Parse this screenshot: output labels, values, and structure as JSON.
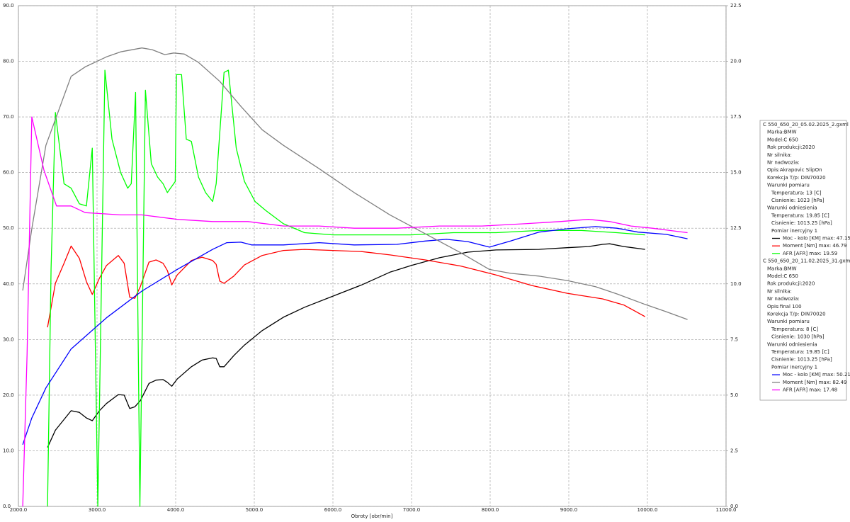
{
  "chart_data": {
    "type": "line",
    "x_label": "Obroty [obr/min]",
    "xlim": [
      2000,
      11000
    ],
    "xticks": [
      {
        "value": 2000,
        "label": "2000.0"
      },
      {
        "value": 3000,
        "label": "3000.0"
      },
      {
        "value": 4000,
        "label": "4000.0"
      },
      {
        "value": 5000,
        "label": "5000.0"
      },
      {
        "value": 6000,
        "label": "6000.0"
      },
      {
        "value": 7000,
        "label": "7000.0"
      },
      {
        "value": 8000,
        "label": "8000.0"
      },
      {
        "value": 9000,
        "label": "9000.0"
      },
      {
        "value": 10000,
        "label": "10000.0"
      },
      {
        "value": 11000,
        "label": "11000.0"
      }
    ],
    "ylim": [
      0,
      90
    ],
    "yticks": [
      {
        "value": 0,
        "label": "0.0"
      },
      {
        "value": 10,
        "label": "10.0"
      },
      {
        "value": 20,
        "label": "20.0"
      },
      {
        "value": 30,
        "label": "30.0"
      },
      {
        "value": 40,
        "label": "40.0"
      },
      {
        "value": 50,
        "label": "50.0"
      },
      {
        "value": 60,
        "label": "60.0"
      },
      {
        "value": 70,
        "label": "70.0"
      },
      {
        "value": 80,
        "label": "80.0"
      },
      {
        "value": 90,
        "label": "90.0"
      }
    ],
    "y2lim": [
      0,
      22.5
    ],
    "y2ticks": [
      {
        "value": 0,
        "label": "0.0"
      },
      2.5,
      {
        "value": 5,
        "label": "5.0"
      },
      7.5,
      {
        "value": 10,
        "label": "10.0"
      },
      12.5,
      {
        "value": 15,
        "label": "15.0"
      },
      17.5,
      {
        "value": 20,
        "label": "20.0"
      },
      22.5
    ],
    "grid": true,
    "legend_info": [
      {
        "file": "C 550_650_20_05.02.2025_2.gxml",
        "lines": [
          "Marka:BMW",
          "Model:C 650",
          "Rok produkcji:2020",
          "Nr silnika:",
          "Nr nadwozia:",
          "Opis:Akrapovic SlipOn",
          "Korekcja T/p: DIN70020"
        ],
        "conditions": [
          {
            "title": "Warunki pomiaru",
            "items": [
              "Temperatura: 13 [C]",
              "Cisnienie: 1023 [hPa]"
            ]
          },
          {
            "title": "Warunki odniesienia",
            "items": [
              "Temperatura: 19.85 [C]",
              "Cisnienie: 1013.25 [hPa]"
            ]
          }
        ],
        "measurement": "Pomiar inercyjny 1"
      },
      {
        "file": "C 550_650_20_11.02.2025_31.gxml",
        "lines": [
          "Marka:BMW",
          "Model:C 650",
          "Rok produkcji:2020",
          "Nr silnika:",
          "Nr nadwozia:",
          "Opis:final 100",
          "Korekcja T/p: DIN70020"
        ],
        "conditions": [
          {
            "title": "Warunki pomiaru",
            "items": [
              "Temperatura: 8 [C]",
              "Cisnienie: 1030 [hPa]"
            ]
          },
          {
            "title": "Warunki odniesienia",
            "items": [
              "Temperatura: 19.85 [C]",
              "Cisnienie: 1013.25 [hPa]"
            ]
          }
        ],
        "measurement": "Pomiar inercyjny 1"
      }
    ],
    "series": [
      {
        "name": "Moc - kolo [KM] max: 47.15",
        "color": "#000000",
        "x": [
          2370,
          2470,
          2670,
          2775,
          2865,
          2940,
          3030,
          3120,
          3270,
          3345,
          3415,
          3480,
          3550,
          3660,
          3750,
          3840,
          3895,
          3950,
          4020,
          4200,
          4335,
          4470,
          4515,
          4560,
          4615,
          4740,
          4875,
          5100,
          5370,
          5640,
          6000,
          6365,
          6725,
          6995,
          7355,
          7715,
          8075,
          8620,
          8980,
          9250,
          9430,
          9520,
          9700,
          9970
        ],
        "values": [
          10.6,
          13.7,
          17.2,
          16.9,
          15.9,
          15.4,
          17.2,
          18.5,
          20.1,
          20.0,
          17.6,
          17.9,
          19.0,
          22.1,
          22.7,
          22.8,
          22.3,
          21.6,
          22.9,
          25.1,
          26.3,
          26.7,
          26.6,
          25.1,
          25.1,
          27.1,
          29.0,
          31.6,
          34.0,
          35.8,
          37.8,
          39.8,
          42.1,
          43.3,
          44.7,
          45.7,
          46.1,
          46.2,
          46.5,
          46.7,
          47.1,
          47.2,
          46.7,
          46.2
        ]
      },
      {
        "name": "Moment [Nm] max: 46.79",
        "color": "#ff0000",
        "x": [
          2370,
          2470,
          2580,
          2670,
          2775,
          2865,
          2940,
          3030,
          3120,
          3270,
          3345,
          3415,
          3480,
          3550,
          3660,
          3750,
          3840,
          3895,
          3950,
          4020,
          4200,
          4335,
          4470,
          4515,
          4560,
          4615,
          4740,
          4875,
          5100,
          5370,
          5640,
          6000,
          6365,
          6725,
          7175,
          7625,
          8075,
          8530,
          8980,
          9430,
          9700,
          9970
        ],
        "values": [
          32.2,
          40.1,
          43.7,
          46.8,
          44.6,
          40.4,
          38.1,
          41.0,
          43.3,
          45.1,
          43.7,
          37.6,
          37.4,
          39.5,
          43.9,
          44.3,
          43.7,
          42.4,
          39.8,
          41.6,
          44.2,
          44.8,
          44.2,
          43.5,
          40.5,
          40.1,
          41.4,
          43.4,
          45.1,
          46.0,
          46.2,
          46.0,
          45.8,
          45.2,
          44.3,
          43.2,
          41.6,
          39.7,
          38.3,
          37.3,
          36.2,
          34.1
        ]
      },
      {
        "name": "AFR [AFR] max: 19.59",
        "color": "#00ff00",
        "axis": "y2",
        "x": [
          2370,
          2415,
          2470,
          2580,
          2670,
          2775,
          2865,
          2940,
          3010,
          3100,
          3190,
          3300,
          3390,
          3435,
          3490,
          3545,
          3615,
          3690,
          3770,
          3840,
          3895,
          3995,
          4010,
          4075,
          4135,
          4200,
          4290,
          4380,
          4470,
          4515,
          4615,
          4670,
          4770,
          4875,
          5010,
          5145,
          5370,
          5640,
          6000,
          6455,
          6995,
          7535,
          8075,
          8620,
          9160,
          9610,
          9970
        ],
        "values": [
          0.0,
          10.7,
          17.7,
          14.5,
          14.3,
          13.6,
          13.5,
          16.1,
          0.0,
          19.6,
          16.5,
          15.0,
          14.3,
          14.5,
          18.6,
          0.0,
          18.7,
          15.4,
          14.8,
          14.5,
          14.1,
          14.6,
          19.4,
          19.4,
          16.5,
          16.4,
          14.8,
          14.1,
          13.7,
          14.5,
          19.5,
          19.6,
          16.1,
          14.6,
          13.7,
          13.3,
          12.7,
          12.3,
          12.2,
          12.2,
          12.2,
          12.3,
          12.3,
          12.4,
          12.4,
          12.3,
          12.2
        ]
      },
      {
        "name": "Moc - kolo [KM] max: 50.21",
        "color": "#0000ff",
        "x": [
          2055,
          2170,
          2350,
          2670,
          3120,
          3570,
          4020,
          4470,
          4650,
          4830,
          4965,
          5370,
          5825,
          6270,
          6815,
          7175,
          7445,
          7715,
          7990,
          8260,
          8620,
          8980,
          9340,
          9610,
          9880,
          10240,
          10510
        ],
        "values": [
          11.1,
          15.9,
          21.3,
          28.3,
          33.9,
          38.7,
          42.6,
          46.2,
          47.4,
          47.5,
          47.0,
          47.0,
          47.4,
          47.0,
          47.1,
          47.7,
          48.0,
          47.6,
          46.6,
          47.7,
          49.3,
          49.9,
          50.3,
          50.0,
          49.3,
          48.9,
          48.1
        ]
      },
      {
        "name": "Moment [Nm] max: 82.49",
        "color": "#808080",
        "x": [
          2055,
          2170,
          2350,
          2670,
          2850,
          3120,
          3300,
          3570,
          3700,
          3860,
          3975,
          4110,
          4290,
          4560,
          4830,
          5100,
          5370,
          5825,
          6270,
          6725,
          7175,
          7625,
          7990,
          8260,
          8620,
          8980,
          9340,
          9610,
          9970,
          10240,
          10510
        ],
        "values": [
          38.8,
          49.9,
          64.9,
          77.3,
          79.0,
          80.8,
          81.7,
          82.4,
          82.1,
          81.2,
          81.5,
          81.3,
          79.8,
          76.4,
          71.9,
          67.7,
          64.9,
          60.7,
          56.4,
          52.4,
          49.0,
          45.6,
          42.6,
          41.9,
          41.4,
          40.6,
          39.5,
          38.2,
          36.3,
          35.0,
          33.6
        ]
      },
      {
        "name": "AFR [AFR] max: 17.48",
        "color": "#ff00ff",
        "axis": "y2",
        "x": [
          2055,
          2110,
          2170,
          2325,
          2485,
          2670,
          2850,
          3300,
          3570,
          4020,
          4470,
          4920,
          5370,
          5825,
          6270,
          6815,
          7355,
          7895,
          8440,
          8890,
          9250,
          9520,
          9790,
          10060,
          10285,
          10510
        ],
        "values": [
          0.0,
          6.8,
          17.5,
          15.1,
          13.5,
          13.5,
          13.2,
          13.1,
          13.1,
          12.9,
          12.8,
          12.8,
          12.6,
          12.6,
          12.5,
          12.5,
          12.6,
          12.6,
          12.7,
          12.8,
          12.9,
          12.8,
          12.6,
          12.5,
          12.4,
          12.3
        ]
      }
    ]
  }
}
